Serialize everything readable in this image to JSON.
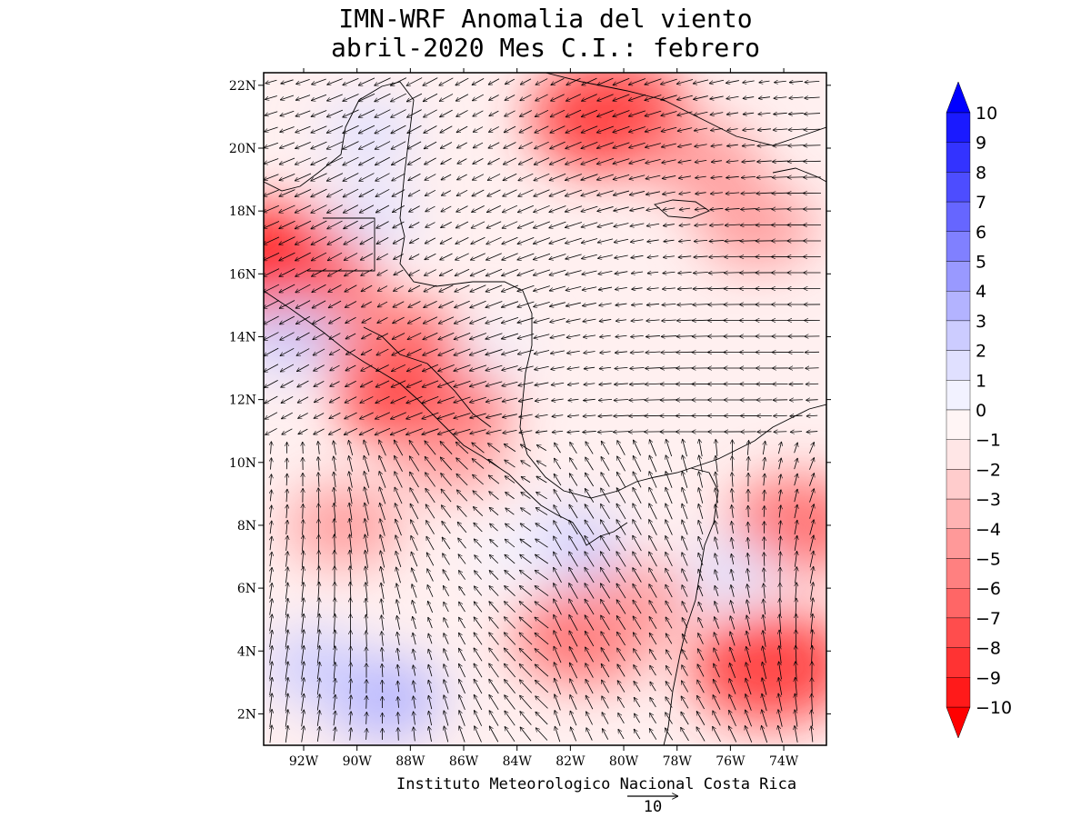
{
  "title": {
    "line1": "IMN-WRF Anomalia del viento",
    "line2": "abril-2020 Mes C.I.: febrero"
  },
  "credit": "Instituto Meteorologico Nacional Costa Rica",
  "reference_vector": {
    "label": "10",
    "magnitude": 10
  },
  "map": {
    "lon_range": [
      -93.5,
      -72.4
    ],
    "lat_range": [
      1.0,
      22.4
    ],
    "lon_ticks": [
      {
        "value": -92,
        "label": "92W"
      },
      {
        "value": -90,
        "label": "90W"
      },
      {
        "value": -88,
        "label": "88W"
      },
      {
        "value": -86,
        "label": "86W"
      },
      {
        "value": -84,
        "label": "84W"
      },
      {
        "value": -82,
        "label": "82W"
      },
      {
        "value": -80,
        "label": "80W"
      },
      {
        "value": -78,
        "label": "78W"
      },
      {
        "value": -76,
        "label": "76W"
      },
      {
        "value": -74,
        "label": "74W"
      }
    ],
    "lat_ticks": [
      {
        "value": 22,
        "label": "22N"
      },
      {
        "value": 20,
        "label": "20N"
      },
      {
        "value": 18,
        "label": "18N"
      },
      {
        "value": 16,
        "label": "16N"
      },
      {
        "value": 14,
        "label": "14N"
      },
      {
        "value": 12,
        "label": "12N"
      },
      {
        "value": 10,
        "label": "10N"
      },
      {
        "value": 8,
        "label": "8N"
      },
      {
        "value": 6,
        "label": "6N"
      },
      {
        "value": 4,
        "label": "4N"
      },
      {
        "value": 2,
        "label": "2N"
      }
    ]
  },
  "colorbar": {
    "labels": [
      "10",
      "9",
      "8",
      "7",
      "6",
      "5",
      "4",
      "3",
      "2",
      "1",
      "0",
      "-1",
      "-2",
      "-3",
      "-4",
      "-5",
      "-6",
      "-7",
      "-8",
      "-9",
      "-10"
    ],
    "colors": [
      "#1a1aff",
      "#3333ff",
      "#4d4dff",
      "#6666ff",
      "#8080ff",
      "#9999ff",
      "#b3b3ff",
      "#ccccff",
      "#e0e0ff",
      "#f2f2ff",
      "#fff5f5",
      "#ffe6e6",
      "#ffcccc",
      "#ffb3b3",
      "#ff9999",
      "#ff8080",
      "#ff6666",
      "#ff4d4d",
      "#ff3333",
      "#ff1a1a"
    ],
    "max_arrow_color": "#0000ff",
    "min_arrow_color": "#ff0000"
  },
  "anomaly_regions": [
    {
      "lon": -80.5,
      "lat": 21.0,
      "value": -8
    },
    {
      "lon": -77.0,
      "lat": 19.5,
      "value": -4
    },
    {
      "lon": -75.0,
      "lat": 17.5,
      "value": -4
    },
    {
      "lon": -92.7,
      "lat": 16.3,
      "value": -9
    },
    {
      "lon": -87.5,
      "lat": 12.3,
      "value": -9
    },
    {
      "lon": -88.0,
      "lat": 13.3,
      "value": -7
    },
    {
      "lon": -90.0,
      "lat": 14.3,
      "value": -5
    },
    {
      "lon": -86.5,
      "lat": 10.3,
      "value": -4
    },
    {
      "lon": -90.5,
      "lat": 8.0,
      "value": -4
    },
    {
      "lon": -81.5,
      "lat": 4.5,
      "value": -6
    },
    {
      "lon": -79.5,
      "lat": 5.5,
      "value": -4
    },
    {
      "lon": -73.5,
      "lat": 8.0,
      "value": -6
    },
    {
      "lon": -74.5,
      "lat": 3.5,
      "value": -8
    },
    {
      "lon": -89.0,
      "lat": 2.5,
      "value": 4
    },
    {
      "lon": -91.5,
      "lat": 3.5,
      "value": 3
    },
    {
      "lon": -92.5,
      "lat": 14.0,
      "value": 3
    },
    {
      "lon": -89.5,
      "lat": 17.8,
      "value": 2
    },
    {
      "lon": -89.5,
      "lat": 20.5,
      "value": 2
    },
    {
      "lon": -82.0,
      "lat": 7.3,
      "value": 3
    },
    {
      "lon": -85.0,
      "lat": 13.5,
      "value": 1
    },
    {
      "lon": -84.0,
      "lat": 7.0,
      "value": 1
    },
    {
      "lon": -76.0,
      "lat": 6.5,
      "value": 2
    }
  ]
}
